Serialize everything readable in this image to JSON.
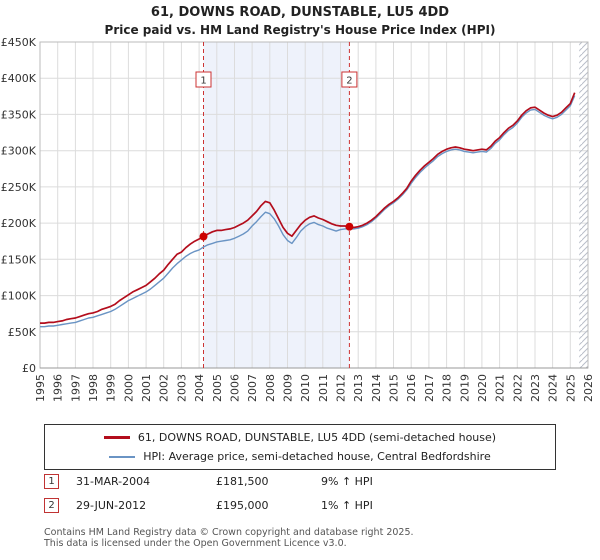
{
  "colors": {
    "property": "#b30d1c",
    "hpi": "#6a94c4",
    "band": "#eef2fb",
    "grid": "#dcdcdc",
    "axis": "#999999",
    "dashed": "#cc3333",
    "marker": "#cc0000"
  },
  "chart_data": {
    "type": "line",
    "title": "61, DOWNS ROAD, DUNSTABLE, LU5 4DD",
    "subtitle": "Price paid vs. HM Land Registry's House Price Index (HPI)",
    "x_range": [
      1995,
      2026
    ],
    "y_range": [
      0,
      450000
    ],
    "x_start": 1995,
    "x_step": 0.25,
    "grid": true,
    "legend_position": "bottom",
    "y_ticks": [
      [
        0,
        "£0"
      ],
      [
        50000,
        "£50K"
      ],
      [
        100000,
        "£100K"
      ],
      [
        150000,
        "£150K"
      ],
      [
        200000,
        "£200K"
      ],
      [
        250000,
        "£250K"
      ],
      [
        300000,
        "£300K"
      ],
      [
        350000,
        "£350K"
      ],
      [
        400000,
        "£400K"
      ],
      [
        450000,
        "£450K"
      ]
    ],
    "x_ticks": [
      1995,
      1996,
      1997,
      1998,
      1999,
      2000,
      2001,
      2002,
      2003,
      2004,
      2005,
      2006,
      2007,
      2008,
      2009,
      2010,
      2011,
      2012,
      2013,
      2014,
      2015,
      2016,
      2017,
      2018,
      2019,
      2020,
      2021,
      2022,
      2023,
      2024,
      2025,
      2026
    ],
    "band": [
      2004.25,
      2012.5
    ],
    "hatch": [
      2025.5,
      2026
    ],
    "series": [
      {
        "name": "61, DOWNS ROAD, DUNSTABLE, LU5 4DD (semi-detached house)",
        "color": "#b30d1c",
        "values": [
          62000,
          62000,
          63000,
          63000,
          64000,
          65000,
          67000,
          68000,
          69000,
          71000,
          73000,
          75000,
          76000,
          78000,
          81000,
          83000,
          85000,
          88000,
          93000,
          97000,
          101000,
          105000,
          108000,
          111000,
          114000,
          119000,
          124000,
          130000,
          135000,
          143000,
          150000,
          157000,
          160000,
          166000,
          171000,
          175000,
          178000,
          181500,
          185000,
          188000,
          190000,
          190000,
          191000,
          192000,
          194000,
          197000,
          200000,
          204000,
          210000,
          216000,
          224000,
          230000,
          228000,
          218000,
          206000,
          194000,
          186000,
          182000,
          190000,
          198000,
          204000,
          208000,
          210000,
          207000,
          205000,
          202000,
          199000,
          197000,
          196000,
          196000,
          195000,
          194000,
          195000,
          197000,
          200000,
          204000,
          209000,
          215000,
          221000,
          226000,
          230000,
          235000,
          241000,
          248000,
          258000,
          266000,
          273000,
          279000,
          284000,
          289000,
          295000,
          299000,
          302000,
          304000,
          305000,
          304000,
          302000,
          301000,
          300000,
          301000,
          302000,
          301000,
          306000,
          313000,
          318000,
          325000,
          331000,
          335000,
          341000,
          349000,
          355000,
          359000,
          360000,
          356000,
          352000,
          349000,
          347000,
          349000,
          353000,
          359000,
          365000,
          380000
        ]
      },
      {
        "name": "HPI: Average price, semi-detached house, Central Bedfordshire",
        "color": "#6a94c4",
        "values": [
          57000,
          57000,
          58000,
          58000,
          59000,
          60000,
          61000,
          62000,
          63000,
          65000,
          67000,
          69000,
          70000,
          72000,
          74000,
          76000,
          78000,
          81000,
          85000,
          89000,
          93000,
          96000,
          99000,
          102000,
          105000,
          109000,
          114000,
          119000,
          124000,
          131000,
          138000,
          144000,
          149000,
          154000,
          158000,
          161000,
          163000,
          167000,
          170000,
          172000,
          174000,
          175000,
          176000,
          177000,
          179000,
          182000,
          185000,
          189000,
          196000,
          202000,
          209000,
          215000,
          213000,
          206000,
          196000,
          184000,
          176000,
          172000,
          180000,
          189000,
          195000,
          199000,
          201000,
          198000,
          196000,
          193000,
          191000,
          189000,
          191000,
          192000,
          192000,
          192000,
          193000,
          195000,
          198000,
          202000,
          207000,
          213000,
          219000,
          224000,
          228000,
          233000,
          239000,
          246000,
          255000,
          263000,
          270000,
          276000,
          281000,
          286000,
          292000,
          296000,
          299000,
          301000,
          302000,
          301000,
          299000,
          298000,
          297000,
          298000,
          299000,
          298000,
          303000,
          310000,
          315000,
          322000,
          328000,
          332000,
          338000,
          346000,
          352000,
          356000,
          357000,
          353000,
          349000,
          346000,
          344000,
          346000,
          350000,
          356000,
          362000,
          376000
        ]
      }
    ],
    "sales": [
      {
        "num": "1",
        "x": 2004.25,
        "value": 181500,
        "date": "31-MAR-2004",
        "price": "£181,500",
        "hpi_delta": "9% ↑ HPI"
      },
      {
        "num": "2",
        "x": 2012.5,
        "value": 195000,
        "date": "29-JUN-2012",
        "price": "£195,000",
        "hpi_delta": "1% ↑ HPI"
      }
    ]
  },
  "footer": {
    "line1": "Contains HM Land Registry data © Crown copyright and database right 2025.",
    "line2": "This data is licensed under the Open Government Licence v3.0."
  }
}
